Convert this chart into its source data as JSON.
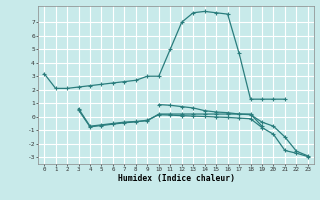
{
  "xlabel": "Humidex (Indice chaleur)",
  "background_color": "#c8eaea",
  "grid_color": "#ffffff",
  "line_color": "#2a7d7d",
  "xlim": [
    -0.5,
    23.5
  ],
  "ylim": [
    -3.5,
    8.2
  ],
  "yticks": [
    -3,
    -2,
    -1,
    0,
    1,
    2,
    3,
    4,
    5,
    6,
    7
  ],
  "xticks": [
    0,
    1,
    2,
    3,
    4,
    5,
    6,
    7,
    8,
    9,
    10,
    11,
    12,
    13,
    14,
    15,
    16,
    17,
    18,
    19,
    20,
    21,
    22,
    23
  ],
  "series1_x": [
    0,
    1,
    2,
    3,
    4,
    5,
    6,
    7,
    8,
    9,
    10,
    11,
    12,
    13,
    14,
    15,
    16,
    17,
    18,
    19,
    20,
    21
  ],
  "series1_y": [
    3.2,
    2.1,
    2.1,
    2.2,
    2.3,
    2.4,
    2.5,
    2.6,
    2.7,
    3.0,
    3.0,
    5.0,
    7.0,
    7.7,
    7.8,
    7.7,
    7.6,
    4.7,
    1.3,
    1.3,
    1.3,
    1.3
  ],
  "series2_x": [
    3,
    4,
    5,
    6,
    7,
    8,
    9,
    10,
    11,
    12,
    13,
    14,
    15,
    16,
    17,
    18,
    19
  ],
  "series2_y": [
    0.6,
    -0.7,
    -0.6,
    -0.5,
    -0.4,
    -0.35,
    -0.3,
    0.2,
    0.2,
    0.2,
    0.2,
    0.2,
    0.2,
    0.2,
    0.2,
    0.2,
    -0.7
  ],
  "series3_x": [
    3,
    4,
    5,
    6,
    7,
    8,
    9,
    10,
    11,
    12,
    13,
    14,
    15,
    16,
    17,
    18,
    19,
    20,
    21,
    22,
    23
  ],
  "series3_y": [
    0.5,
    -0.75,
    -0.65,
    -0.55,
    -0.45,
    -0.38,
    -0.25,
    0.15,
    0.12,
    0.08,
    0.05,
    0.02,
    -0.02,
    -0.05,
    -0.1,
    -0.15,
    -0.8,
    -1.3,
    -2.5,
    -2.7,
    -2.95
  ],
  "series4_x": [
    10,
    11,
    12,
    13,
    14,
    15,
    16,
    17,
    18,
    19,
    20,
    21,
    22,
    23
  ],
  "series4_y": [
    0.9,
    0.85,
    0.75,
    0.65,
    0.45,
    0.35,
    0.3,
    0.2,
    0.15,
    -0.4,
    -0.7,
    -1.5,
    -2.55,
    -2.9
  ]
}
